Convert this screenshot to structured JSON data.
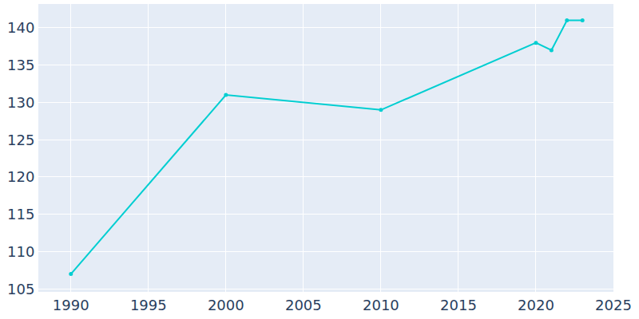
{
  "chart_data": {
    "type": "line",
    "x": [
      1990,
      2000,
      2010,
      2020,
      2021,
      2022,
      2023
    ],
    "values": [
      107,
      131,
      129,
      138,
      137,
      141,
      141
    ],
    "color": "#00ced1",
    "marker": "circle",
    "xlim": [
      1987.9,
      2025
    ],
    "xticks": [
      1990,
      1995,
      2000,
      2005,
      2010,
      2015,
      2020,
      2025
    ],
    "ylim": [
      104.6,
      143.2
    ],
    "yticks": [
      105,
      110,
      115,
      120,
      125,
      130,
      135,
      140
    ],
    "grid": true
  }
}
